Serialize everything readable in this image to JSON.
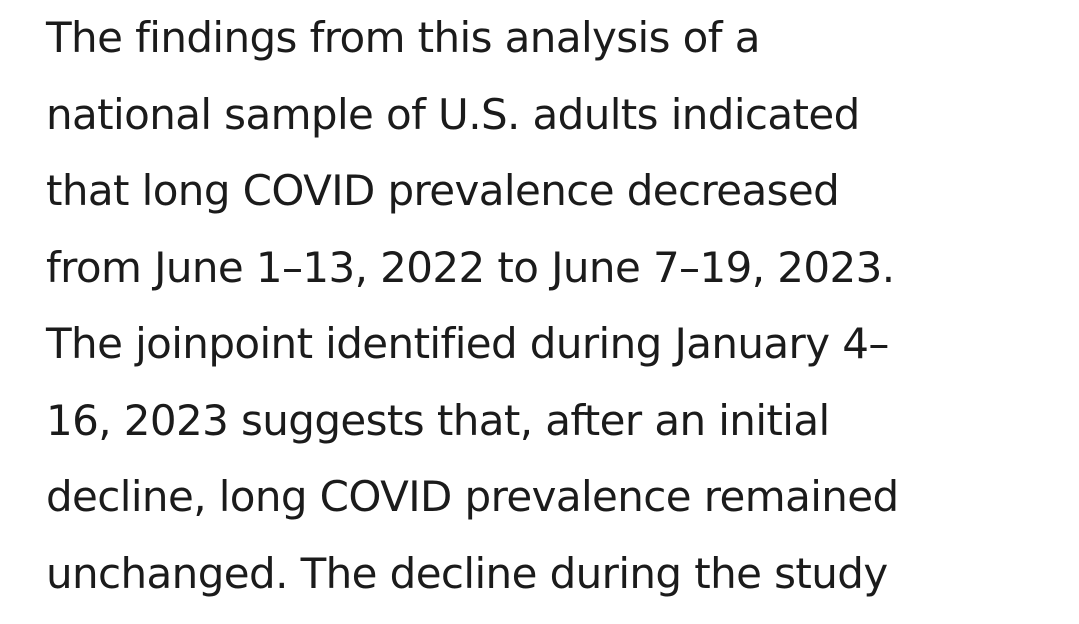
{
  "paragraph": {
    "lines": [
      "The findings from this analysis of a",
      "national sample of U.S. adults indicated",
      "that long COVID prevalence decreased",
      "from June 1–13, 2022 to June 7–19, 2023.",
      "The joinpoint identified during January 4–",
      "16, 2023 suggests that, after an initial",
      "decline, long COVID prevalence remained",
      "unchanged. The decline during the study"
    ]
  }
}
